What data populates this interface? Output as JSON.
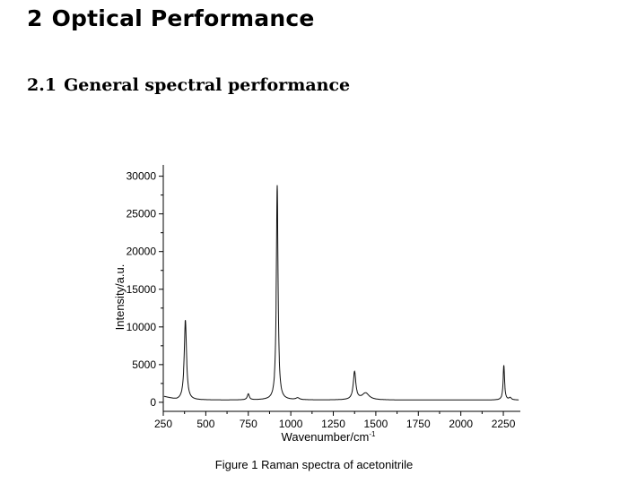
{
  "section": {
    "number": "2",
    "title": "Optical Performance"
  },
  "subsection": {
    "number": "2.1",
    "title": "General spectral performance"
  },
  "chart_data": {
    "type": "line",
    "title": "",
    "xlabel": "Wavenumber/cm",
    "xlabel_superscript": "-1",
    "ylabel": "Intensity/a.u.",
    "xlim": [
      250,
      2350
    ],
    "ylim": [
      -1200,
      31500
    ],
    "xticks": [
      250,
      500,
      750,
      1000,
      1250,
      1500,
      1750,
      2000,
      2250
    ],
    "xtick_labels": [
      "250",
      "500",
      "750",
      "1000",
      "1250",
      "1500",
      "1750",
      "2000",
      "2250"
    ],
    "yticks": [
      0,
      5000,
      10000,
      15000,
      20000,
      25000,
      30000
    ],
    "ytick_labels": [
      "0",
      "5000",
      "10000",
      "15000",
      "20000",
      "25000",
      "30000"
    ],
    "grid": false,
    "series": [
      {
        "name": "Raman spectrum of acetonitrile",
        "baseline": 300,
        "peaks": [
          {
            "x": 380,
            "height": 10600,
            "width": 8
          },
          {
            "x": 750,
            "height": 800,
            "width": 7
          },
          {
            "x": 920,
            "height": 28500,
            "width": 6
          },
          {
            "x": 1040,
            "height": 250,
            "width": 12
          },
          {
            "x": 1375,
            "height": 3700,
            "width": 9
          },
          {
            "x": 1440,
            "height": 900,
            "width": 25
          },
          {
            "x": 2253,
            "height": 4600,
            "width": 5
          },
          {
            "x": 2290,
            "height": 300,
            "width": 8
          }
        ]
      }
    ]
  },
  "figure_caption": "Figure 1 Raman spectra of acetonitrile"
}
